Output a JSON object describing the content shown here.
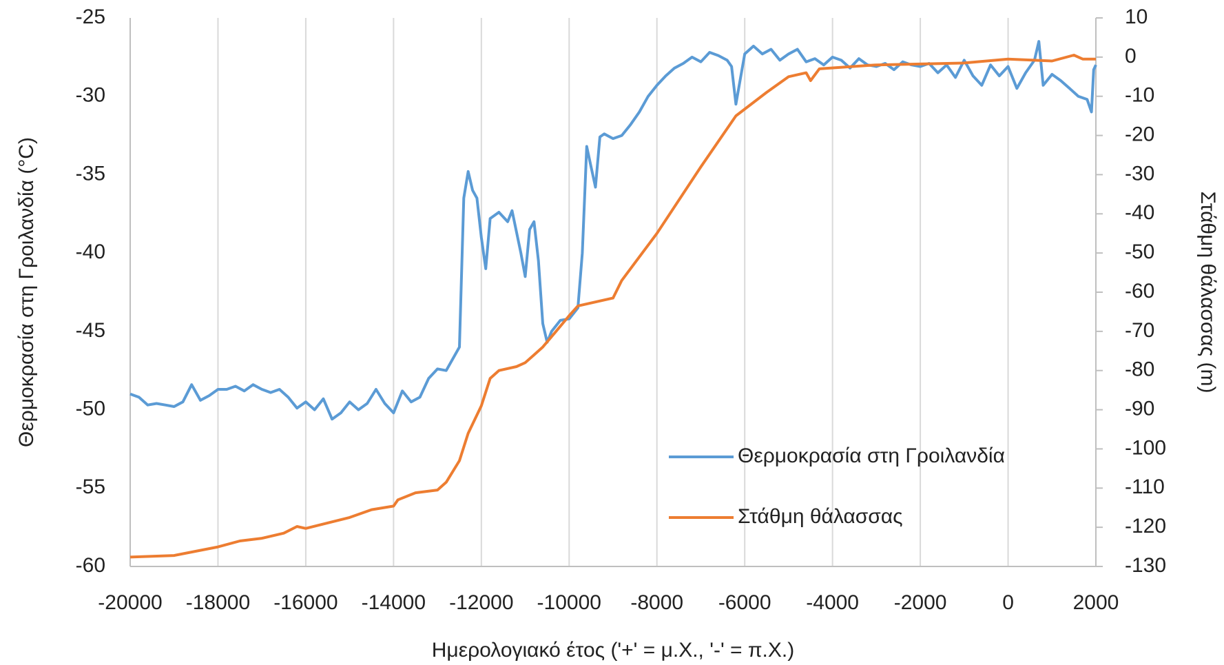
{
  "chart_data": {
    "type": "line",
    "x_label": "Ημερολογιακό έτος ('+' = μ.Χ., '-' = π.Χ.)",
    "y_label": "Θερμοκρασία στη Γροιλανδία (°C)",
    "y2_label": "Στάθμη θάλασσας (m)",
    "xlim": [
      -20000,
      2000
    ],
    "xticks": [
      -20000,
      -18000,
      -16000,
      -14000,
      -12000,
      -10000,
      -8000,
      -6000,
      -4000,
      -2000,
      0,
      2000
    ],
    "ylim": [
      -60,
      -25
    ],
    "yticks": [
      -60,
      -55,
      -50,
      -45,
      -40,
      -35,
      -30,
      -25
    ],
    "y2lim": [
      -130,
      10
    ],
    "y2ticks": [
      -130,
      -120,
      -110,
      -100,
      -90,
      -80,
      -70,
      -60,
      -50,
      -40,
      -30,
      -20,
      -10,
      0,
      10
    ],
    "grid": "x",
    "legend": "lower right",
    "series": [
      {
        "name": "Θερμοκρασία στη Γροιλανδία",
        "color": "#5b9bd5",
        "x": [
          -20000,
          -19800,
          -19600,
          -19400,
          -19200,
          -19000,
          -18800,
          -18600,
          -18400,
          -18200,
          -18000,
          -17800,
          -17600,
          -17400,
          -17200,
          -17000,
          -16800,
          -16600,
          -16400,
          -16200,
          -16000,
          -15800,
          -15600,
          -15400,
          -15200,
          -15000,
          -14800,
          -14600,
          -14400,
          -14200,
          -14000,
          -13800,
          -13600,
          -13400,
          -13200,
          -13000,
          -12800,
          -12600,
          -12500,
          -12400,
          -12300,
          -12200,
          -12100,
          -12000,
          -11900,
          -11800,
          -11600,
          -11400,
          -11300,
          -11100,
          -11000,
          -10900,
          -10800,
          -10700,
          -10600,
          -10500,
          -10400,
          -10200,
          -10000,
          -9800,
          -9700,
          -9600,
          -9500,
          -9400,
          -9300,
          -9200,
          -9000,
          -8800,
          -8600,
          -8400,
          -8200,
          -8000,
          -7800,
          -7600,
          -7400,
          -7200,
          -7000,
          -6800,
          -6600,
          -6400,
          -6300,
          -6200,
          -6000,
          -5800,
          -5600,
          -5400,
          -5200,
          -5000,
          -4800,
          -4600,
          -4400,
          -4200,
          -4000,
          -3800,
          -3600,
          -3400,
          -3200,
          -3000,
          -2800,
          -2600,
          -2400,
          -2200,
          -2000,
          -1800,
          -1600,
          -1400,
          -1200,
          -1000,
          -800,
          -600,
          -400,
          -200,
          0,
          200,
          400,
          600,
          700,
          800,
          1000,
          1200,
          1400,
          1600,
          1800,
          1900,
          1950,
          2000
        ],
        "values": [
          -49.0,
          -49.2,
          -49.7,
          -49.6,
          -49.7,
          -49.8,
          -49.5,
          -48.4,
          -49.4,
          -49.1,
          -48.7,
          -48.7,
          -48.5,
          -48.8,
          -48.4,
          -48.7,
          -48.9,
          -48.7,
          -49.2,
          -49.9,
          -49.5,
          -50.0,
          -49.3,
          -50.6,
          -50.2,
          -49.5,
          -50.0,
          -49.6,
          -48.7,
          -49.6,
          -50.2,
          -48.8,
          -49.5,
          -49.2,
          -48.0,
          -47.4,
          -47.5,
          -46.5,
          -46.0,
          -36.5,
          -34.8,
          -36.0,
          -36.5,
          -39.0,
          -41.0,
          -37.8,
          -37.4,
          -38.0,
          -37.3,
          -40.0,
          -41.5,
          -38.5,
          -38.0,
          -40.5,
          -44.5,
          -45.7,
          -45.0,
          -44.3,
          -44.2,
          -43.5,
          -40.0,
          -33.2,
          -34.5,
          -35.8,
          -32.6,
          -32.4,
          -32.7,
          -32.5,
          -31.8,
          -31.0,
          -30.0,
          -29.3,
          -28.7,
          -28.2,
          -27.9,
          -27.5,
          -27.8,
          -27.2,
          -27.4,
          -27.7,
          -28.1,
          -30.5,
          -27.3,
          -26.8,
          -27.3,
          -27.0,
          -27.7,
          -27.3,
          -27.0,
          -27.8,
          -27.6,
          -28.0,
          -27.5,
          -27.7,
          -28.2,
          -27.6,
          -28.0,
          -28.1,
          -27.9,
          -28.3,
          -27.8,
          -28.0,
          -28.1,
          -27.9,
          -28.5,
          -28.0,
          -28.8,
          -27.7,
          -28.7,
          -29.3,
          -28.0,
          -28.7,
          -28.1,
          -29.5,
          -28.5,
          -27.7,
          -26.5,
          -29.3,
          -28.6,
          -29.0,
          -29.5,
          -30.0,
          -30.2,
          -31.0,
          -28.3,
          -28.0
        ]
      },
      {
        "name": "Στάθμη θάλασσας",
        "color": "#ed7d31",
        "axis": "y2",
        "x": [
          -20000,
          -19000,
          -18000,
          -17500,
          -17000,
          -16500,
          -16200,
          -16000,
          -15000,
          -14500,
          -14000,
          -13900,
          -13500,
          -13000,
          -12800,
          -12500,
          -12300,
          -12000,
          -11800,
          -11600,
          -11200,
          -11000,
          -10800,
          -10600,
          -10300,
          -10000,
          -9800,
          -9000,
          -8800,
          -8000,
          -7000,
          -6200,
          -5500,
          -5000,
          -4600,
          -4500,
          -4300,
          -3000,
          -1000,
          0,
          1000,
          1500,
          1700,
          2000
        ],
        "values": [
          -127.6,
          -127.2,
          -125,
          -123.5,
          -122.8,
          -121.5,
          -119.8,
          -120.3,
          -117.5,
          -115.5,
          -114.6,
          -113,
          -111.2,
          -110.5,
          -108.5,
          -103,
          -96,
          -89,
          -82,
          -80,
          -79,
          -78,
          -76,
          -74,
          -70,
          -66,
          -63.5,
          -61.5,
          -57,
          -45,
          -28,
          -15,
          -9,
          -5,
          -4,
          -6,
          -3,
          -2,
          -1.5,
          -0.5,
          -1,
          0.5,
          -0.5,
          -0.5
        ]
      }
    ]
  }
}
